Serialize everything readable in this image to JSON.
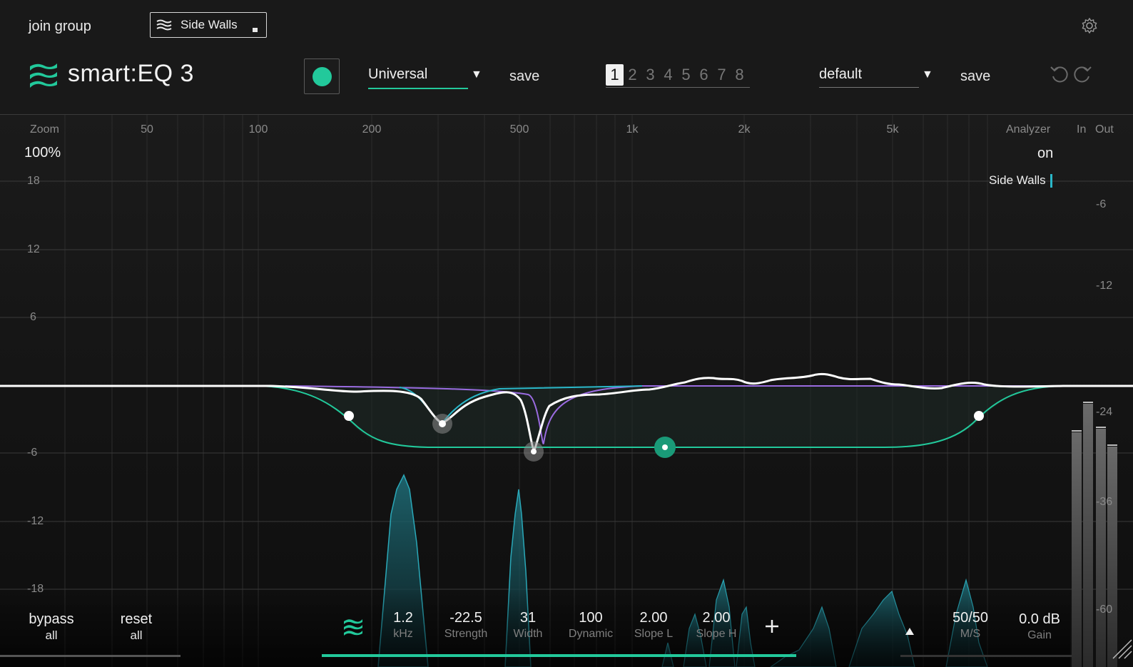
{
  "header": {
    "join_group": "join group",
    "group_name": "Side Walls",
    "logo_text": "smart:EQ 3",
    "profile": "Universal",
    "profile_save": "save",
    "slots": [
      "1",
      "2",
      "3",
      "4",
      "5",
      "6",
      "7",
      "8"
    ],
    "active_slot": "1",
    "preset": "default",
    "preset_save": "save"
  },
  "graph": {
    "zoom_label": "Zoom",
    "zoom_value": "100%",
    "freq_labels": [
      "50",
      "100",
      "200",
      "500",
      "1k",
      "2k",
      "5k"
    ],
    "db_labels": [
      "18",
      "12",
      "6",
      "-6",
      "-12",
      "-18"
    ],
    "analyzer_label": "Analyzer",
    "analyzer_value": "on",
    "in_label": "In",
    "out_label": "Out",
    "meter_labels": [
      "-6",
      "-12",
      "-24",
      "-36",
      "-60"
    ],
    "legend_group": "Side Walls"
  },
  "controls": {
    "bypass": {
      "value": "bypass",
      "sub": "all"
    },
    "reset": {
      "value": "reset",
      "sub": "all"
    },
    "params": [
      {
        "value": "1.2",
        "label": "kHz"
      },
      {
        "value": "-22.5",
        "label": "Strength"
      },
      {
        "value": "31",
        "label": "Width"
      },
      {
        "value": "100",
        "label": "Dynamic"
      },
      {
        "value": "2.00",
        "label": "Slope L"
      },
      {
        "value": "2.00",
        "label": "Slope H"
      }
    ],
    "ms": {
      "value": "50/50",
      "label": "M/S"
    },
    "gain": {
      "value": "0.0 dB",
      "label": "Gain"
    }
  },
  "colors": {
    "accent": "#22c99b",
    "group_line": "#2ab7c9",
    "purple": "#9a6be0",
    "curve": "#ffffff"
  },
  "icons": {
    "group": "layers-icon",
    "settings": "gear-icon",
    "undo": "undo-icon",
    "redo": "redo-icon",
    "add": "plus-icon"
  }
}
